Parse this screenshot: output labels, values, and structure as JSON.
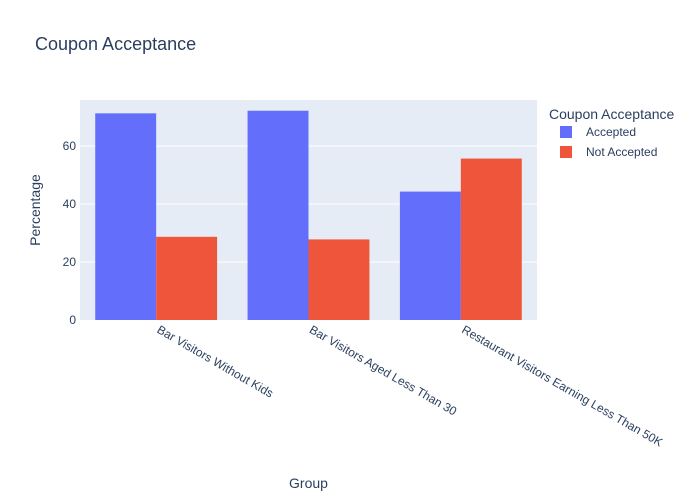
{
  "chart_data": {
    "type": "bar",
    "title": "Coupon Acceptance",
    "xlabel": "Group",
    "ylabel": "Percentage",
    "categories": [
      "Bar Visitors Without Kids",
      "Bar Visitors Aged Less Than 30",
      "Restaurant Visitors Earning Less Than 50K"
    ],
    "series": [
      {
        "name": "Accepted",
        "values": [
          71.3,
          72.2,
          44.3
        ],
        "color": "#636efa"
      },
      {
        "name": "Not Accepted",
        "values": [
          28.7,
          27.8,
          55.7
        ],
        "color": "#ef553b"
      }
    ],
    "ylim": [
      0,
      75.9
    ],
    "yticks": [
      0,
      20,
      40,
      60
    ],
    "grid": true,
    "legend": {
      "title": "Coupon Acceptance",
      "position": "top-right"
    },
    "colors": {
      "plot_bg": "#e5ecf6",
      "grid": "#ffffff",
      "text": "#2a3f5f"
    }
  }
}
